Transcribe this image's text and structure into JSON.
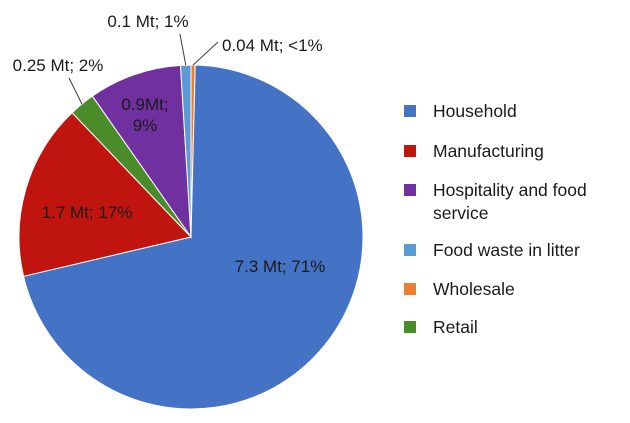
{
  "chart_data": {
    "type": "pie",
    "title": "",
    "slices": [
      {
        "name": "Household",
        "value": 7.3,
        "label": "7.3 Mt; 71%",
        "color": "#4472c4"
      },
      {
        "name": "Manufacturing",
        "value": 1.7,
        "label": "1.7 Mt; 17%",
        "color": "#c0150f"
      },
      {
        "name": "Hospitality and food service",
        "value": 0.9,
        "label_lines": [
          "0.9Mt;",
          "9%"
        ],
        "color": "#7030a0"
      },
      {
        "name": "Food waste in litter",
        "value": 0.1,
        "label": "0.1 Mt; 1%",
        "color": "#5b9bd5"
      },
      {
        "name": "Wholesale",
        "value": 0.04,
        "label": "0.04 Mt; <1%",
        "color": "#ed7d31"
      },
      {
        "name": "Retail",
        "value": 0.25,
        "label": "0.25 Mt; 2%",
        "color": "#4a8c2a"
      }
    ],
    "legend_position": "right"
  }
}
